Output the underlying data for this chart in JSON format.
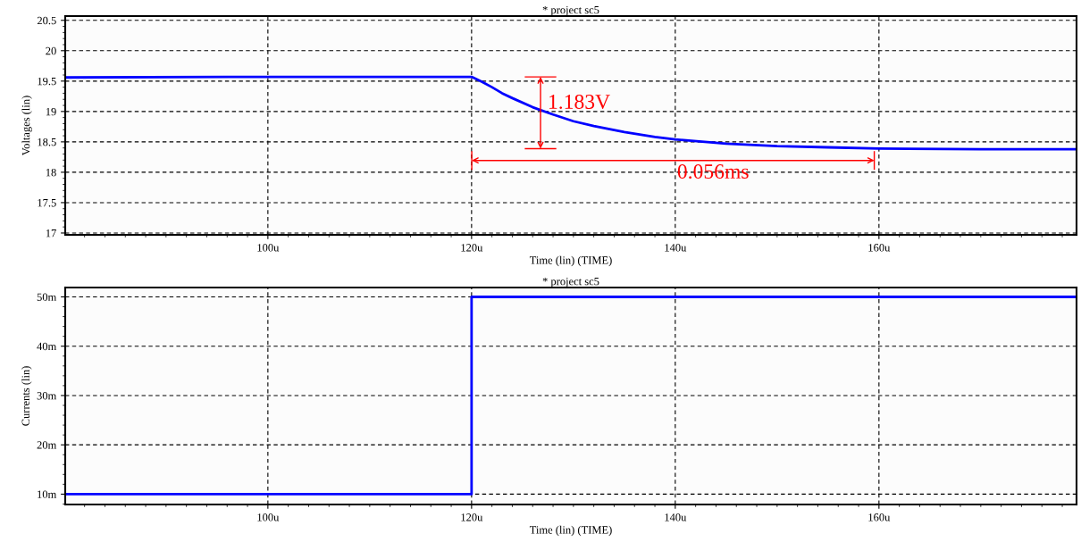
{
  "chart_data": [
    {
      "type": "line",
      "title": "* project sc5",
      "xlabel": "Time (lin) (TIME)",
      "ylabel": "Voltages (lin)",
      "x": [
        80.1,
        100,
        120,
        121,
        122,
        123,
        124,
        126,
        128,
        130,
        132,
        135,
        138,
        140,
        145,
        150,
        155,
        160,
        170,
        179.4
      ],
      "series": [
        {
          "color": "#0000ff",
          "values": [
            19.56,
            19.57,
            19.57,
            19.49,
            19.4,
            19.3,
            19.22,
            19.07,
            18.95,
            18.84,
            18.76,
            18.66,
            18.58,
            18.54,
            18.47,
            18.43,
            18.41,
            18.39,
            18.38,
            18.38
          ]
        }
      ],
      "annotations": [
        "1.183V",
        "0.056ms"
      ],
      "xlim": [
        80.1,
        179.4
      ],
      "xticks": [
        {
          "value": 100,
          "label": "100u"
        },
        {
          "value": 120,
          "label": "120u"
        },
        {
          "value": 140,
          "label": "140u"
        },
        {
          "value": 160,
          "label": "160u"
        }
      ],
      "ylim": [
        16.97,
        20.57
      ],
      "yticks": [
        17,
        17.5,
        18,
        18.5,
        19,
        19.5,
        20,
        20.5
      ],
      "grid": true,
      "line_style": "solid"
    },
    {
      "type": "step",
      "title": "* project sc5",
      "xlabel": "Time (lin) (TIME)",
      "ylabel": "Currents (lin)",
      "x": [
        80.1,
        120,
        179.4
      ],
      "series": [
        {
          "color": "#0000ff",
          "values": [
            10,
            50,
            50
          ]
        }
      ],
      "xlim": [
        80.1,
        179.4
      ],
      "xticks": [
        {
          "value": 100,
          "label": "100u"
        },
        {
          "value": 120,
          "label": "120u"
        },
        {
          "value": 140,
          "label": "140u"
        },
        {
          "value": 160,
          "label": "160u"
        }
      ],
      "ylim": [
        7.9,
        51.9
      ],
      "yticks": [
        {
          "value": 10,
          "label": "10m"
        },
        {
          "value": 20,
          "label": "20m"
        },
        {
          "value": 30,
          "label": "30m"
        },
        {
          "value": 40,
          "label": "40m"
        },
        {
          "value": 50,
          "label": "50m"
        }
      ],
      "grid": true,
      "line_style": "solid"
    }
  ]
}
